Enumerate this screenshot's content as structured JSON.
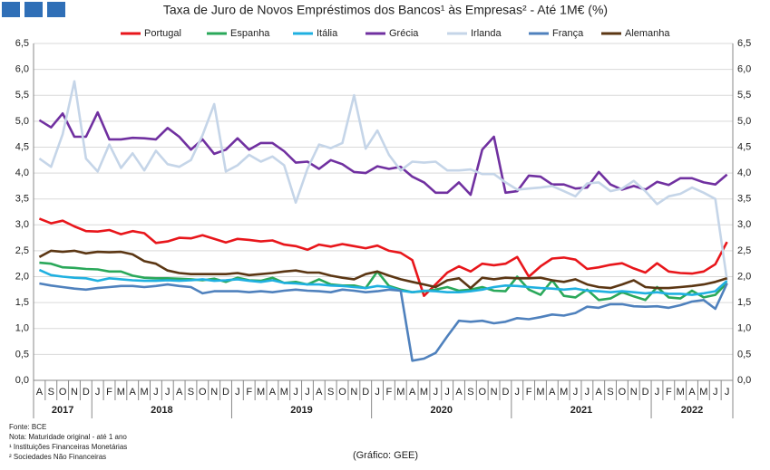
{
  "chart_data": {
    "type": "line",
    "title": "Taxa de Juro de Novos Empréstimos dos Bancos¹ às Empresas² -  Até 1M€ (%)",
    "categories": [
      "A",
      "S",
      "O",
      "N",
      "D",
      "J",
      "F",
      "M",
      "A",
      "M",
      "J",
      "J",
      "A",
      "S",
      "O",
      "N",
      "D",
      "J",
      "F",
      "M",
      "A",
      "M",
      "J",
      "J",
      "A",
      "S",
      "O",
      "N",
      "D",
      "J",
      "F",
      "M",
      "A",
      "M",
      "J",
      "J",
      "A",
      "S",
      "O",
      "N",
      "D",
      "J",
      "F",
      "M",
      "A",
      "M",
      "J",
      "J",
      "A",
      "S",
      "O",
      "N",
      "D",
      "J",
      "F",
      "M",
      "A",
      "M",
      "J",
      "J"
    ],
    "years": [
      "2017",
      "2018",
      "2019",
      "2020",
      "2021",
      "2022"
    ],
    "series": [
      {
        "name": "Portugal",
        "color": "#e8161b",
        "values": [
          3.12,
          3.03,
          3.08,
          2.97,
          2.88,
          2.87,
          2.9,
          2.82,
          2.88,
          2.84,
          2.65,
          2.68,
          2.75,
          2.74,
          2.8,
          2.73,
          2.66,
          2.73,
          2.71,
          2.68,
          2.7,
          2.62,
          2.59,
          2.52,
          2.62,
          2.58,
          2.63,
          2.59,
          2.55,
          2.6,
          2.5,
          2.46,
          2.32,
          1.63,
          1.85,
          2.08,
          2.2,
          2.1,
          2.25,
          2.22,
          2.25,
          2.38,
          2.0,
          2.2,
          2.35,
          2.37,
          2.33,
          2.15,
          2.18,
          2.23,
          2.26,
          2.16,
          2.08,
          2.26,
          2.1,
          2.07,
          2.06,
          2.1,
          2.24,
          2.67
        ]
      },
      {
        "name": "Espanha",
        "color": "#2aa85a",
        "values": [
          2.27,
          2.25,
          2.18,
          2.17,
          2.15,
          2.14,
          2.1,
          2.1,
          2.02,
          1.98,
          1.97,
          1.97,
          1.96,
          1.95,
          1.93,
          1.96,
          1.9,
          1.98,
          1.93,
          1.92,
          1.98,
          1.88,
          1.9,
          1.85,
          1.95,
          1.85,
          1.83,
          1.83,
          1.78,
          2.1,
          1.82,
          1.75,
          1.7,
          1.72,
          1.75,
          1.8,
          1.73,
          1.75,
          1.8,
          1.73,
          1.72,
          2.0,
          1.75,
          1.65,
          1.93,
          1.63,
          1.6,
          1.75,
          1.55,
          1.58,
          1.7,
          1.62,
          1.55,
          1.8,
          1.6,
          1.58,
          1.73,
          1.6,
          1.65,
          1.88
        ]
      },
      {
        "name": "Itália",
        "color": "#1fb0e0",
        "values": [
          2.13,
          2.03,
          2.0,
          1.98,
          1.97,
          1.92,
          1.97,
          1.95,
          1.93,
          1.92,
          1.92,
          1.93,
          1.92,
          1.93,
          1.95,
          1.92,
          1.93,
          1.95,
          1.92,
          1.9,
          1.93,
          1.88,
          1.87,
          1.85,
          1.85,
          1.83,
          1.82,
          1.8,
          1.78,
          1.82,
          1.8,
          1.73,
          1.7,
          1.73,
          1.72,
          1.7,
          1.7,
          1.72,
          1.75,
          1.8,
          1.83,
          1.82,
          1.8,
          1.78,
          1.77,
          1.75,
          1.77,
          1.73,
          1.72,
          1.7,
          1.72,
          1.7,
          1.68,
          1.7,
          1.67,
          1.67,
          1.65,
          1.68,
          1.72,
          1.92
        ]
      },
      {
        "name": "Grécia",
        "color": "#7030a0",
        "values": [
          5.02,
          4.88,
          5.15,
          4.7,
          4.7,
          5.17,
          4.65,
          4.65,
          4.68,
          4.67,
          4.65,
          4.87,
          4.7,
          4.45,
          4.65,
          4.37,
          4.45,
          4.67,
          4.45,
          4.58,
          4.58,
          4.42,
          4.2,
          4.22,
          4.08,
          4.25,
          4.17,
          4.02,
          4.0,
          4.13,
          4.08,
          4.12,
          3.93,
          3.82,
          3.62,
          3.62,
          3.82,
          3.58,
          4.45,
          4.7,
          3.62,
          3.65,
          3.95,
          3.93,
          3.78,
          3.78,
          3.7,
          3.72,
          4.02,
          3.78,
          3.68,
          3.75,
          3.68,
          3.83,
          3.77,
          3.9,
          3.9,
          3.82,
          3.78,
          3.97
        ]
      },
      {
        "name": "Irlanda",
        "color": "#c5d5e8",
        "values": [
          4.28,
          4.12,
          4.75,
          5.77,
          4.28,
          4.03,
          4.55,
          4.1,
          4.38,
          4.05,
          4.43,
          4.17,
          4.12,
          4.25,
          4.73,
          5.33,
          4.03,
          4.15,
          4.35,
          4.22,
          4.32,
          4.15,
          3.43,
          4.08,
          4.55,
          4.48,
          4.58,
          5.5,
          4.47,
          4.82,
          4.35,
          4.05,
          4.22,
          4.2,
          4.22,
          4.05,
          4.05,
          4.07,
          3.98,
          3.98,
          3.82,
          3.68,
          3.7,
          3.72,
          3.75,
          3.65,
          3.55,
          3.8,
          3.82,
          3.65,
          3.7,
          3.85,
          3.65,
          3.4,
          3.55,
          3.6,
          3.72,
          3.62,
          3.5,
          1.93
        ]
      },
      {
        "name": "França",
        "color": "#4f81bd",
        "values": [
          1.87,
          1.83,
          1.8,
          1.77,
          1.75,
          1.78,
          1.8,
          1.82,
          1.82,
          1.8,
          1.82,
          1.85,
          1.82,
          1.8,
          1.68,
          1.72,
          1.72,
          1.72,
          1.7,
          1.72,
          1.7,
          1.73,
          1.75,
          1.73,
          1.72,
          1.7,
          1.75,
          1.73,
          1.7,
          1.72,
          1.75,
          1.73,
          0.38,
          0.42,
          0.53,
          0.85,
          1.15,
          1.13,
          1.15,
          1.1,
          1.13,
          1.2,
          1.18,
          1.22,
          1.27,
          1.25,
          1.3,
          1.42,
          1.4,
          1.47,
          1.47,
          1.43,
          1.42,
          1.43,
          1.4,
          1.45,
          1.52,
          1.55,
          1.38,
          1.87
        ]
      },
      {
        "name": "Alemanha",
        "color": "#5b3613",
        "values": [
          2.38,
          2.5,
          2.48,
          2.5,
          2.45,
          2.48,
          2.47,
          2.48,
          2.43,
          2.3,
          2.25,
          2.12,
          2.07,
          2.05,
          2.05,
          2.05,
          2.05,
          2.07,
          2.03,
          2.05,
          2.07,
          2.1,
          2.12,
          2.08,
          2.08,
          2.02,
          1.98,
          1.95,
          2.05,
          2.1,
          2.02,
          1.95,
          1.9,
          1.85,
          1.8,
          1.93,
          1.97,
          1.78,
          1.98,
          1.95,
          1.98,
          1.97,
          1.97,
          1.98,
          1.93,
          1.9,
          1.95,
          1.85,
          1.8,
          1.78,
          1.85,
          1.93,
          1.8,
          1.78,
          1.78,
          1.8,
          1.82,
          1.85,
          1.9,
          1.97
        ]
      }
    ],
    "ylim": [
      0,
      6.5
    ],
    "yticks": [
      {
        "value": 0,
        "label": "0,0"
      },
      {
        "value": 0.5,
        "label": "0,5"
      },
      {
        "value": 1,
        "label": "1,0"
      },
      {
        "value": 1.5,
        "label": "1,5"
      },
      {
        "value": 2,
        "label": "2,0"
      },
      {
        "value": 2.5,
        "label": "2,5"
      },
      {
        "value": 3,
        "label": "3,0"
      },
      {
        "value": 3.5,
        "label": "3,5"
      },
      {
        "value": 4,
        "label": "4,0"
      },
      {
        "value": 4.5,
        "label": "4,5"
      },
      {
        "value": 5,
        "label": "5,0"
      },
      {
        "value": 5.5,
        "label": "5,5"
      },
      {
        "value": 6,
        "label": "6,0"
      },
      {
        "value": 6.5,
        "label": "6,5"
      }
    ],
    "y2lim": [
      0,
      6.5
    ],
    "y2ticks": [
      {
        "value": 0,
        "label": "0,0"
      },
      {
        "value": 0.5,
        "label": "0,5"
      },
      {
        "value": 1,
        "label": "1,0"
      },
      {
        "value": 1.5,
        "label": "1,5"
      },
      {
        "value": 2,
        "label": "2,0"
      },
      {
        "value": 2.5,
        "label": "2,5"
      },
      {
        "value": 3,
        "label": "3,0"
      },
      {
        "value": 3.5,
        "label": "3,5"
      },
      {
        "value": 4,
        "label": "4,0"
      },
      {
        "value": 4.5,
        "label": "4,5"
      },
      {
        "value": 5,
        "label": "5,0"
      },
      {
        "value": 5.5,
        "label": "5,5"
      },
      {
        "value": 6,
        "label": "6,0"
      },
      {
        "value": 6.5,
        "label": "6,5"
      }
    ],
    "grid": true,
    "legend": "top",
    "notes": [
      "Fonte: BCE",
      "Nota: Maturidade original - até 1 ano",
      "¹ Instituições Financeiras Monetárias",
      "² Sociedades Não Financeiras"
    ],
    "credit": "(Gráfico: GEE)"
  }
}
